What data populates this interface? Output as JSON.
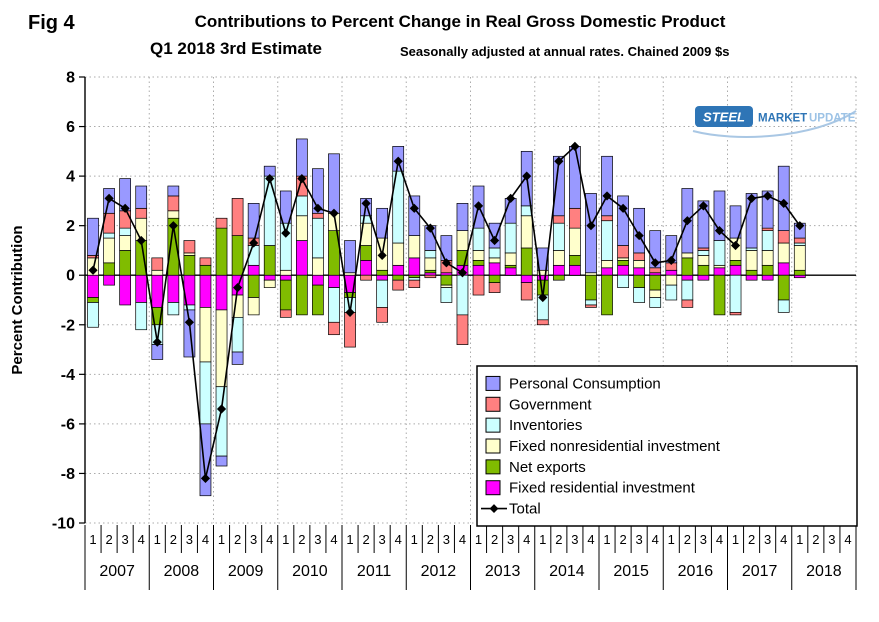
{
  "figure": {
    "fig_label": "Fig 4",
    "title": "Contributions to Percent Change in Real Gross Domestic Product",
    "subtitle": "Q1 2018 3rd Estimate",
    "subtitle_note": "Seasonally adjusted at annual rates. Chained 2009 $s",
    "ylabel": "Percent Contribution",
    "logo": {
      "steel": "STEEL",
      "market": "MARKET",
      "update": "UPDATE"
    }
  },
  "chart_data": {
    "type": "bar",
    "stacked": true,
    "grid": true,
    "legend_position": "inside-bottom-right",
    "ylim": [
      -10,
      8
    ],
    "ytick_step": 2,
    "years": [
      "2007",
      "2008",
      "2009",
      "2010",
      "2011",
      "2012",
      "2013",
      "2014",
      "2015",
      "2016",
      "2017",
      "2018"
    ],
    "quarter_labels": [
      "1",
      "2",
      "3",
      "4"
    ],
    "n_data_quarters": 45,
    "series": [
      {
        "name": "Personal Consumption",
        "color": "#9999FF",
        "values": [
          1.5,
          1.0,
          1.3,
          0.9,
          -0.6,
          0.4,
          -1.9,
          -2.9,
          -0.4,
          -0.5,
          1.4,
          0.4,
          1.3,
          1.5,
          1.8,
          2.4,
          1.3,
          0.7,
          1.2,
          1.0,
          1.6,
          1.0,
          1.0,
          1.1,
          1.7,
          1.0,
          1.0,
          2.2,
          0.9,
          2.4,
          2.5,
          3.2,
          2.4,
          2.0,
          1.8,
          1.5,
          1.1,
          2.6,
          1.9,
          2.0,
          1.3,
          2.2,
          1.5,
          2.6,
          0.6
        ]
      },
      {
        "name": "Government",
        "color": "#FF8080",
        "values": [
          0.1,
          0.8,
          0.7,
          0.4,
          0.5,
          0.6,
          0.5,
          0.3,
          0.4,
          1.5,
          0.3,
          0.0,
          -0.3,
          0.8,
          0.2,
          -0.5,
          -1.4,
          -0.2,
          -0.6,
          -0.4,
          -0.3,
          -0.1,
          0.5,
          -1.2,
          -0.8,
          -0.4,
          0.0,
          -0.7,
          -0.2,
          0.3,
          0.8,
          -0.1,
          0.2,
          0.5,
          0.3,
          0.2,
          0.3,
          -0.3,
          0.1,
          0.0,
          -0.1,
          0.0,
          0.1,
          0.5,
          0.2
        ]
      },
      {
        "name": "Inventories",
        "color": "#CCFFFF",
        "values": [
          -1.0,
          0.2,
          0.3,
          -1.1,
          -0.8,
          -0.5,
          -0.2,
          -2.5,
          -2.8,
          -1.4,
          0.8,
          2.8,
          1.9,
          0.8,
          1.6,
          -1.4,
          -0.6,
          0.3,
          -1.1,
          2.9,
          -0.1,
          0.3,
          -0.6,
          -1.6,
          0.9,
          0.4,
          1.2,
          0.4,
          -1.0,
          1.1,
          0.0,
          -0.2,
          1.6,
          -0.5,
          -0.6,
          -0.4,
          -0.6,
          -0.8,
          0.2,
          1.0,
          -1.5,
          0.1,
          0.8,
          -0.5,
          0.1
        ]
      },
      {
        "name": "Fixed nonresidential investment",
        "color": "#FFFFCC",
        "values": [
          0.7,
          1.0,
          0.6,
          0.9,
          0.2,
          0.3,
          0.1,
          -2.2,
          -3.1,
          -0.9,
          -0.7,
          -0.3,
          0.2,
          1.0,
          0.7,
          0.7,
          0.1,
          0.9,
          1.3,
          0.9,
          0.9,
          0.5,
          -0.1,
          0.8,
          0.4,
          0.2,
          0.5,
          1.3,
          0.2,
          0.6,
          1.1,
          0.1,
          0.3,
          0.1,
          0.3,
          -0.3,
          -0.4,
          0.2,
          0.4,
          0.1,
          0.9,
          0.8,
          0.6,
          0.8,
          1.0
        ]
      },
      {
        "name": "Net exports",
        "color": "#80BC00",
        "values": [
          -0.2,
          0.5,
          1.0,
          1.4,
          -0.7,
          2.3,
          0.8,
          0.4,
          1.9,
          1.6,
          -0.9,
          1.2,
          -1.2,
          -1.6,
          -1.2,
          1.8,
          -0.2,
          0.6,
          0.2,
          -0.2,
          -0.1,
          0.1,
          -0.4,
          0.6,
          0.2,
          -0.3,
          0.1,
          1.1,
          -0.6,
          -0.2,
          0.4,
          -1.0,
          -1.6,
          0.2,
          -0.5,
          -0.6,
          0.0,
          0.7,
          0.4,
          -1.6,
          0.2,
          0.2,
          0.4,
          -1.0,
          0.2
        ]
      },
      {
        "name": "Fixed residential investment",
        "color": "#FF00FF",
        "values": [
          -0.9,
          -0.4,
          -1.2,
          -1.1,
          -1.3,
          -1.1,
          -1.2,
          -1.3,
          -1.4,
          -0.8,
          0.4,
          -0.2,
          -0.2,
          1.4,
          -0.4,
          -0.5,
          -0.7,
          0.6,
          -0.2,
          0.4,
          0.7,
          0.1,
          0.1,
          0.4,
          0.4,
          0.5,
          0.3,
          -0.3,
          -0.2,
          0.4,
          0.4,
          0.0,
          0.3,
          0.4,
          0.3,
          0.1,
          0.2,
          -0.2,
          -0.2,
          0.3,
          0.4,
          -0.2,
          -0.2,
          0.5,
          -0.1
        ]
      }
    ],
    "stack_order_bottom_to_top": [
      "Fixed residential investment",
      "Net exports",
      "Fixed nonresidential investment",
      "Inventories",
      "Government",
      "Personal Consumption"
    ],
    "total": {
      "name": "Total",
      "color": "#000000",
      "values": [
        0.2,
        3.1,
        2.7,
        1.4,
        -2.7,
        2.0,
        -1.9,
        -8.2,
        -5.4,
        -0.5,
        1.3,
        3.9,
        1.7,
        3.9,
        2.7,
        2.5,
        -1.5,
        2.9,
        0.8,
        4.6,
        2.7,
        1.9,
        0.5,
        0.1,
        2.8,
        1.4,
        3.1,
        4.0,
        -0.9,
        4.6,
        5.2,
        2.0,
        3.2,
        2.7,
        1.6,
        0.5,
        0.6,
        2.2,
        2.8,
        1.8,
        1.2,
        3.1,
        3.2,
        2.9,
        2.0
      ]
    }
  }
}
